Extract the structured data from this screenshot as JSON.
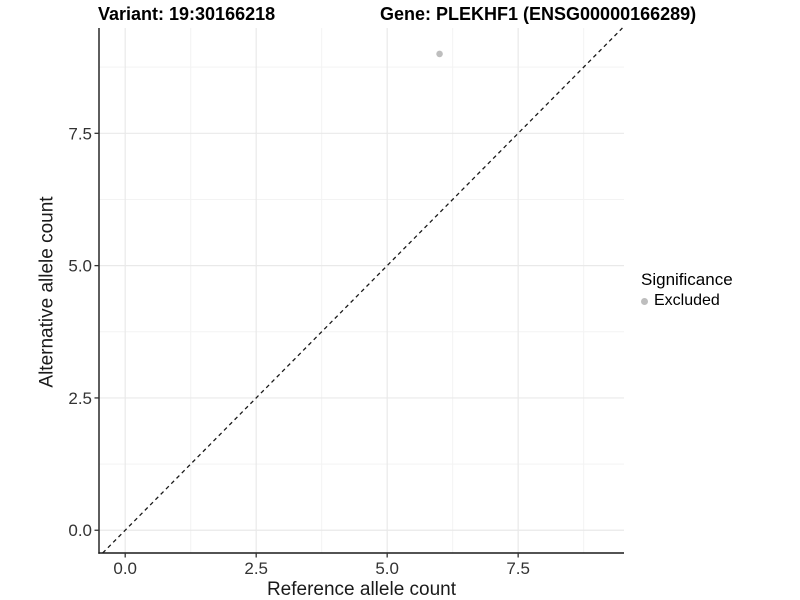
{
  "header": {
    "variant_title": "Variant: 19:30166218",
    "gene_title": "Gene: PLEKHF1 (ENSG00000166289)"
  },
  "chart_data": {
    "type": "scatter",
    "title": "Variant: 19:30166218   Gene: PLEKHF1 (ENSG00000166289)",
    "xlabel": "Reference allele count",
    "ylabel": "Alternative allele count",
    "xlim": [
      -0.5,
      9.52
    ],
    "ylim": [
      -0.43,
      9.49
    ],
    "x_ticks": [
      0.0,
      2.5,
      5.0,
      7.5
    ],
    "y_ticks": [
      0.0,
      2.5,
      5.0,
      7.5
    ],
    "x_tick_labels": [
      "0.0",
      "2.5",
      "5.0",
      "7.5"
    ],
    "y_tick_labels": [
      "0.0",
      "2.5",
      "5.0",
      "7.5"
    ],
    "x_minor_ticks": [
      1.25,
      3.75,
      6.25,
      8.75
    ],
    "y_minor_ticks": [
      1.25,
      3.75,
      6.25,
      8.75
    ],
    "grid": true,
    "reference_line": {
      "type": "identity",
      "style": "dashed",
      "color": "#1a1a1a"
    },
    "series": [
      {
        "name": "Excluded",
        "color": "#bebebe",
        "point_radius": 3.3,
        "points": [
          {
            "x": 6,
            "y": 9
          }
        ]
      }
    ],
    "legend": {
      "title": "Significance",
      "position": "right",
      "entries": [
        {
          "label": "Excluded",
          "color": "#bebebe"
        }
      ]
    }
  },
  "colors": {
    "background": "#ffffff",
    "grid_major": "#e9e9e9",
    "grid_minor": "#f3f3f3",
    "axis_line": "#1a1a1a",
    "tick_mark": "#333333",
    "tick_label": "#333333"
  }
}
